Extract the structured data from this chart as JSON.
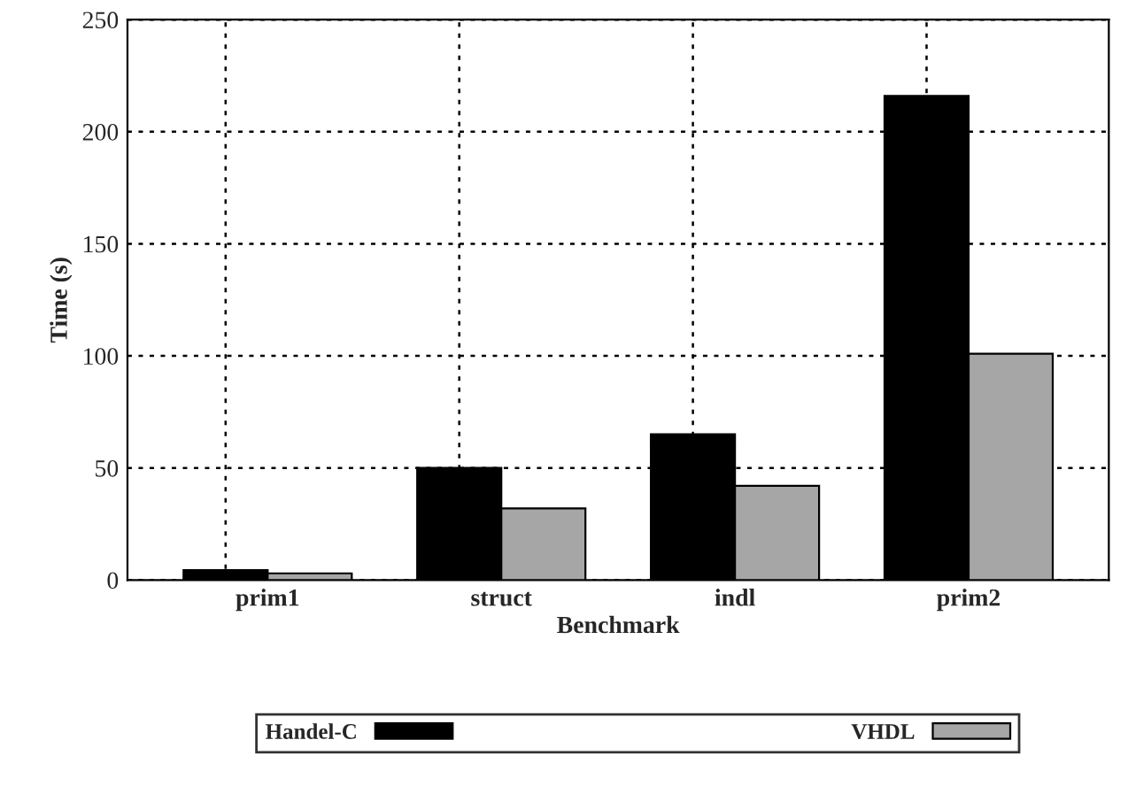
{
  "chart_data": {
    "type": "bar",
    "xlabel": "Benchmark",
    "ylabel": "Time (s)",
    "categories": [
      "prim1",
      "struct",
      "indl",
      "prim2"
    ],
    "series": [
      {
        "name": "Handel-C",
        "color": "#000000",
        "values": [
          4.4,
          50,
          65,
          216
        ]
      },
      {
        "name": "VHDL",
        "color": "#a6a6a6",
        "values": [
          3,
          32,
          42,
          101
        ]
      }
    ],
    "ylim": [
      0,
      250
    ],
    "yticks": [
      0,
      50,
      100,
      150,
      200,
      250
    ],
    "grid": true,
    "legend": "bottom"
  }
}
